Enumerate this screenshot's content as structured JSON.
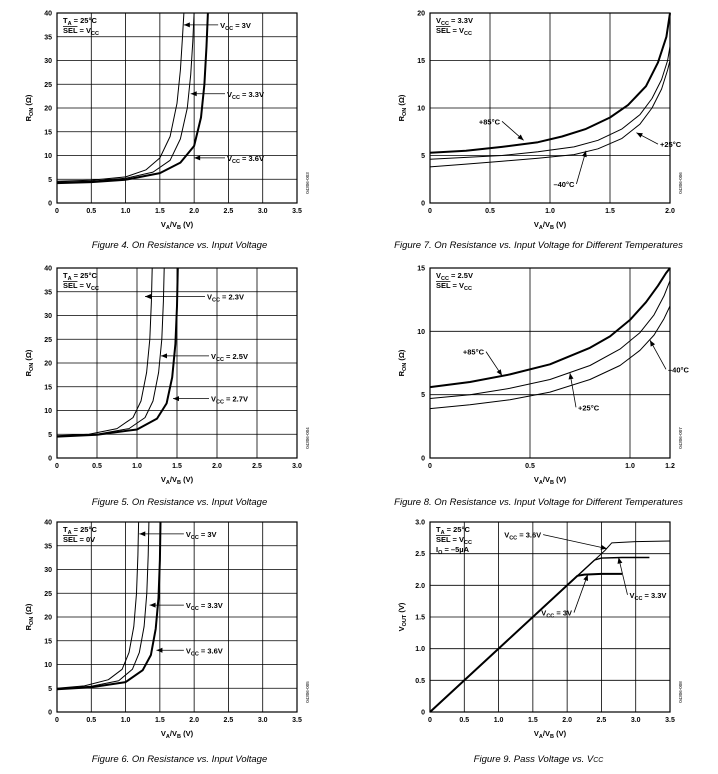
{
  "figures": [
    {
      "id": "fig4",
      "caption": "Figure 4. On Resistance vs. Input Voltage",
      "code": "04306-003",
      "chart_data": {
        "type": "line",
        "xlabel": "V_A/V_B (V)",
        "ylabel": "R_ON (Ω)",
        "xlim": [
          0,
          3.5
        ],
        "ylim": [
          0,
          40
        ],
        "xticks": [
          "0",
          "0.5",
          "1.0",
          "1.5",
          "2.0",
          "2.5",
          "3.0",
          "3.5"
        ],
        "yticks": [
          "0",
          "5",
          "10",
          "15",
          "20",
          "25",
          "30",
          "35",
          "40"
        ],
        "grid": true,
        "notes": [
          "T_A = 25°C",
          "SEL = V_CC"
        ],
        "series": [
          {
            "name": "V_CC = 3V",
            "width": 1,
            "x": [
              0,
              0.5,
              1.0,
              1.3,
              1.5,
              1.65,
              1.75,
              1.8,
              1.83,
              1.85
            ],
            "y": [
              4.6,
              4.8,
              5.5,
              7,
              9.5,
              14,
              21,
              28,
              35,
              40
            ]
          },
          {
            "name": "V_CC = 3.3V",
            "width": 1,
            "x": [
              0,
              0.5,
              1.0,
              1.4,
              1.65,
              1.8,
              1.9,
              1.95,
              1.98,
              2.0
            ],
            "y": [
              4.4,
              4.6,
              5.2,
              6.5,
              9,
              13.5,
              20,
              27,
              34,
              40
            ]
          },
          {
            "name": "V_CC = 3.6V",
            "width": 2,
            "x": [
              0,
              0.5,
              1.0,
              1.5,
              1.8,
              2.0,
              2.1,
              2.15,
              2.18,
              2.2
            ],
            "y": [
              4.2,
              4.4,
              4.9,
              6.3,
              8.5,
              12,
              18,
              25,
              33,
              40
            ]
          }
        ],
        "labels": [
          {
            "text": "V_CC = 3V",
            "series": 0,
            "at": [
              1.85,
              37.5
            ],
            "text_at": [
              2.35,
              37.5
            ]
          },
          {
            "text": "V_CC = 3.3V",
            "series": 1,
            "at": [
              1.95,
              23
            ],
            "text_at": [
              2.45,
              23
            ]
          },
          {
            "text": "V_CC = 3.6V",
            "series": 2,
            "at": [
              2.0,
              9.5
            ],
            "text_at": [
              2.45,
              9.5
            ]
          }
        ]
      }
    },
    {
      "id": "fig7",
      "caption": "Figure 7. On Resistance vs. Input Voltage for Different Temperatures",
      "code": "04306-006",
      "chart_data": {
        "type": "line",
        "xlabel": "V_A/V_B (V)",
        "ylabel": "R_ON (Ω)",
        "xlim": [
          0,
          2.0
        ],
        "ylim": [
          0,
          20
        ],
        "xticks": [
          "0",
          "0.5",
          "1.0",
          "1.5",
          "2.0"
        ],
        "yticks": [
          "0",
          "5",
          "10",
          "15",
          "20"
        ],
        "grid": true,
        "notes": [
          "V_CC = 3.3V",
          "SEL = V_CC"
        ],
        "series": [
          {
            "name": "+85°C",
            "width": 2,
            "x": [
              0,
              0.3,
              0.6,
              0.9,
              1.1,
              1.3,
              1.5,
              1.65,
              1.8,
              1.9,
              1.97,
              2.0
            ],
            "y": [
              5.3,
              5.5,
              5.9,
              6.4,
              7.0,
              7.8,
              9.0,
              10.3,
              12.3,
              14.8,
              17.5,
              20.0
            ]
          },
          {
            "name": "+25°C",
            "width": 1,
            "x": [
              0,
              0.3,
              0.6,
              0.9,
              1.2,
              1.4,
              1.6,
              1.75,
              1.85,
              1.93,
              1.98,
              2.0
            ],
            "y": [
              4.6,
              4.8,
              5.0,
              5.4,
              5.9,
              6.6,
              7.8,
              9.3,
              11.0,
              13.0,
              15.0,
              16.5
            ]
          },
          {
            "name": "-40°C",
            "width": 1,
            "x": [
              0,
              0.3,
              0.6,
              0.9,
              1.2,
              1.4,
              1.6,
              1.75,
              1.85,
              1.93,
              1.98,
              2.0
            ],
            "y": [
              3.8,
              4.1,
              4.4,
              4.7,
              5.1,
              5.7,
              6.8,
              8.3,
              10.0,
              12.0,
              14.0,
              15.0
            ]
          }
        ],
        "labels": [
          {
            "text": "+85°C",
            "series": 0,
            "at": [
              0.78,
              6.6
            ],
            "text_at": [
              0.6,
              8.6
            ]
          },
          {
            "text": "+25°C",
            "series": 1,
            "at": [
              1.72,
              7.4
            ],
            "text_at": [
              1.9,
              6.2
            ]
          },
          {
            "text": "–40°C",
            "series": 2,
            "at": [
              1.3,
              5.5
            ],
            "text_at": [
              1.22,
              2.0
            ]
          }
        ]
      }
    },
    {
      "id": "fig5",
      "caption": "Figure 5. On Resistance vs. Input Voltage",
      "code": "04306-004",
      "chart_data": {
        "type": "line",
        "xlabel": "V_A/V_B (V)",
        "ylabel": "R_ON (Ω)",
        "xlim": [
          0,
          3.0
        ],
        "ylim": [
          0,
          40
        ],
        "xticks": [
          "0",
          "0.5",
          "1.0",
          "1.5",
          "2.0",
          "2.5",
          "3.0"
        ],
        "yticks": [
          "0",
          "5",
          "10",
          "15",
          "20",
          "25",
          "30",
          "35",
          "40"
        ],
        "grid": true,
        "notes": [
          "T_A = 25°C",
          "SEL = V_CC"
        ],
        "series": [
          {
            "name": "V_CC = 2.3V",
            "width": 1,
            "x": [
              0,
              0.4,
              0.75,
              0.95,
              1.05,
              1.12,
              1.16,
              1.18,
              1.19
            ],
            "y": [
              4.7,
              5.0,
              6.2,
              8.5,
              12,
              18,
              25,
              33,
              40
            ]
          },
          {
            "name": "V_CC = 2.5V",
            "width": 1,
            "x": [
              0,
              0.5,
              0.9,
              1.1,
              1.2,
              1.27,
              1.31,
              1.33,
              1.34
            ],
            "y": [
              4.6,
              5.0,
              6.2,
              8.5,
              12,
              18,
              25,
              33,
              40
            ]
          },
          {
            "name": "V_CC = 2.7V",
            "width": 2,
            "x": [
              0,
              0.5,
              1.0,
              1.25,
              1.37,
              1.44,
              1.48,
              1.5,
              1.51
            ],
            "y": [
              4.5,
              4.9,
              6.0,
              8.3,
              11.5,
              17,
              24,
              32,
              40
            ]
          }
        ],
        "labels": [
          {
            "text": "V_CC = 2.3V",
            "series": 0,
            "at": [
              1.1,
              34
            ],
            "text_at": [
              1.85,
              34
            ]
          },
          {
            "text": "V_CC = 2.5V",
            "series": 1,
            "at": [
              1.3,
              21.5
            ],
            "text_at": [
              1.9,
              21.5
            ]
          },
          {
            "text": "V_CC = 2.7V",
            "series": 2,
            "at": [
              1.45,
              12.5
            ],
            "text_at": [
              1.9,
              12.5
            ]
          }
        ]
      }
    },
    {
      "id": "fig8",
      "caption": "Figure 8. On Resistance vs. Input Voltage for Different Temperatures",
      "code": "04306-007",
      "chart_data": {
        "type": "line",
        "xlabel": "V_A/V_B (V)",
        "ylabel": "R_ON (Ω)",
        "xlim": [
          0,
          1.2
        ],
        "ylim": [
          0,
          15
        ],
        "xticks": [
          "0",
          "0.5",
          "1.0",
          "1.2"
        ],
        "yticks": [
          "0",
          "5",
          "10",
          "15"
        ],
        "grid": true,
        "notes": [
          "V_CC = 2.5V",
          "SEL = V_CC"
        ],
        "series": [
          {
            "name": "+85°C",
            "width": 2,
            "x": [
              0,
              0.2,
              0.4,
              0.6,
              0.8,
              0.9,
              1.0,
              1.08,
              1.14,
              1.18,
              1.2
            ],
            "y": [
              5.6,
              6.0,
              6.6,
              7.4,
              8.7,
              9.6,
              10.9,
              12.3,
              13.6,
              14.6,
              15.0
            ]
          },
          {
            "name": "+25°C",
            "width": 1,
            "x": [
              0,
              0.2,
              0.4,
              0.6,
              0.8,
              0.95,
              1.05,
              1.12,
              1.17,
              1.2
            ],
            "y": [
              4.7,
              5.0,
              5.5,
              6.2,
              7.3,
              8.6,
              9.9,
              11.3,
              12.8,
              14.0
            ]
          },
          {
            "name": "-40°C",
            "width": 1,
            "x": [
              0,
              0.2,
              0.4,
              0.6,
              0.8,
              0.95,
              1.05,
              1.12,
              1.17,
              1.2
            ],
            "y": [
              3.9,
              4.2,
              4.6,
              5.2,
              6.2,
              7.3,
              8.5,
              9.7,
              11.0,
              12.0
            ]
          }
        ],
        "labels": [
          {
            "text": "+85°C",
            "series": 0,
            "at": [
              0.36,
              6.5
            ],
            "text_at": [
              0.28,
              8.4
            ]
          },
          {
            "text": "+25°C",
            "series": 1,
            "at": [
              0.7,
              6.7
            ],
            "text_at": [
              0.73,
              4.0
            ]
          },
          {
            "text": "–40°C",
            "series": 2,
            "at": [
              1.1,
              9.3
            ],
            "text_at": [
              1.18,
              7.0
            ]
          }
        ]
      }
    },
    {
      "id": "fig6",
      "caption": "Figure 6. On Resistance vs. Input Voltage",
      "code": "04306-005",
      "chart_data": {
        "type": "line",
        "xlabel": "V_A/V_B (V)",
        "ylabel": "R_ON (Ω)",
        "xlim": [
          0,
          3.5
        ],
        "ylim": [
          0,
          40
        ],
        "xticks": [
          "0",
          "0.5",
          "1.0",
          "1.5",
          "2.0",
          "2.5",
          "3.0",
          "3.5"
        ],
        "yticks": [
          "0",
          "5",
          "10",
          "15",
          "20",
          "25",
          "30",
          "35",
          "40"
        ],
        "grid": true,
        "notes": [
          "T_A = 25°C",
          "SEL = 0V"
        ],
        "series": [
          {
            "name": "V_CC = 3V",
            "width": 1,
            "x": [
              0,
              0.4,
              0.75,
              0.95,
              1.05,
              1.12,
              1.16,
              1.18,
              1.19
            ],
            "y": [
              5.0,
              5.5,
              6.8,
              9,
              12.5,
              18,
              25,
              33,
              40
            ]
          },
          {
            "name": "V_CC = 3.3V",
            "width": 1,
            "x": [
              0,
              0.5,
              0.9,
              1.1,
              1.2,
              1.27,
              1.31,
              1.33,
              1.34
            ],
            "y": [
              4.9,
              5.4,
              6.6,
              9,
              12.5,
              18,
              25,
              33,
              40
            ]
          },
          {
            "name": "V_CC = 3.6V",
            "width": 2,
            "x": [
              0,
              0.5,
              1.0,
              1.25,
              1.37,
              1.44,
              1.48,
              1.5,
              1.51
            ],
            "y": [
              4.8,
              5.2,
              6.3,
              8.8,
              12,
              17.5,
              24,
              32,
              40
            ]
          }
        ],
        "labels": [
          {
            "text": "V_CC = 3V",
            "series": 0,
            "at": [
              1.2,
              37.5
            ],
            "text_at": [
              1.85,
              37.5
            ]
          },
          {
            "text": "V_CC = 3.3V",
            "series": 1,
            "at": [
              1.35,
              22.5
            ],
            "text_at": [
              1.85,
              22.5
            ]
          },
          {
            "text": "V_CC = 3.6V",
            "series": 2,
            "at": [
              1.45,
              13
            ],
            "text_at": [
              1.85,
              13
            ]
          }
        ]
      }
    },
    {
      "id": "fig9",
      "caption": "Figure 9. Pass Voltage vs. V",
      "caption_sub": "CC",
      "code": "04306-008",
      "chart_data": {
        "type": "line",
        "xlabel": "V_A/V_B (V)",
        "ylabel": "V_OUT (V)",
        "xlim": [
          0,
          3.5
        ],
        "ylim": [
          0,
          3.0
        ],
        "xticks": [
          "0",
          "0.5",
          "1.0",
          "1.5",
          "2.0",
          "2.5",
          "3.0",
          "3.5"
        ],
        "yticks": [
          "0",
          "0.5",
          "1.0",
          "1.5",
          "2.0",
          "2.5",
          "3.0"
        ],
        "grid": true,
        "notes": [
          "T_A = 25°C",
          "SEL = V_CC",
          "I_O = –5µA"
        ],
        "series": [
          {
            "name": "V_CC = 3V",
            "width": 2,
            "x": [
              0,
              2.15,
              2.25,
              2.5,
              2.8
            ],
            "y": [
              0,
              2.15,
              2.17,
              2.18,
              2.18
            ]
          },
          {
            "name": "V_CC = 3.3V",
            "width": 1.4,
            "x": [
              0,
              2.4,
              2.5,
              2.8,
              3.2
            ],
            "y": [
              0,
              2.4,
              2.43,
              2.44,
              2.44
            ]
          },
          {
            "name": "V_CC = 3.6V",
            "width": 1,
            "x": [
              0,
              2.55,
              2.65,
              3.0,
              3.5
            ],
            "y": [
              0,
              2.55,
              2.67,
              2.69,
              2.7
            ]
          }
        ],
        "labels": [
          {
            "text": "V_CC = 3.6V",
            "series": 2,
            "at": [
              2.58,
              2.58
            ],
            "text_at": [
              1.65,
              2.8
            ]
          },
          {
            "text": "V_CC = 3V",
            "series": 0,
            "at": [
              2.3,
              2.17
            ],
            "text_at": [
              2.1,
              1.57
            ]
          },
          {
            "text": "V_CC = 3.3V",
            "series": 1,
            "at": [
              2.75,
              2.44
            ],
            "text_at": [
              2.88,
              1.85
            ]
          }
        ]
      }
    }
  ]
}
